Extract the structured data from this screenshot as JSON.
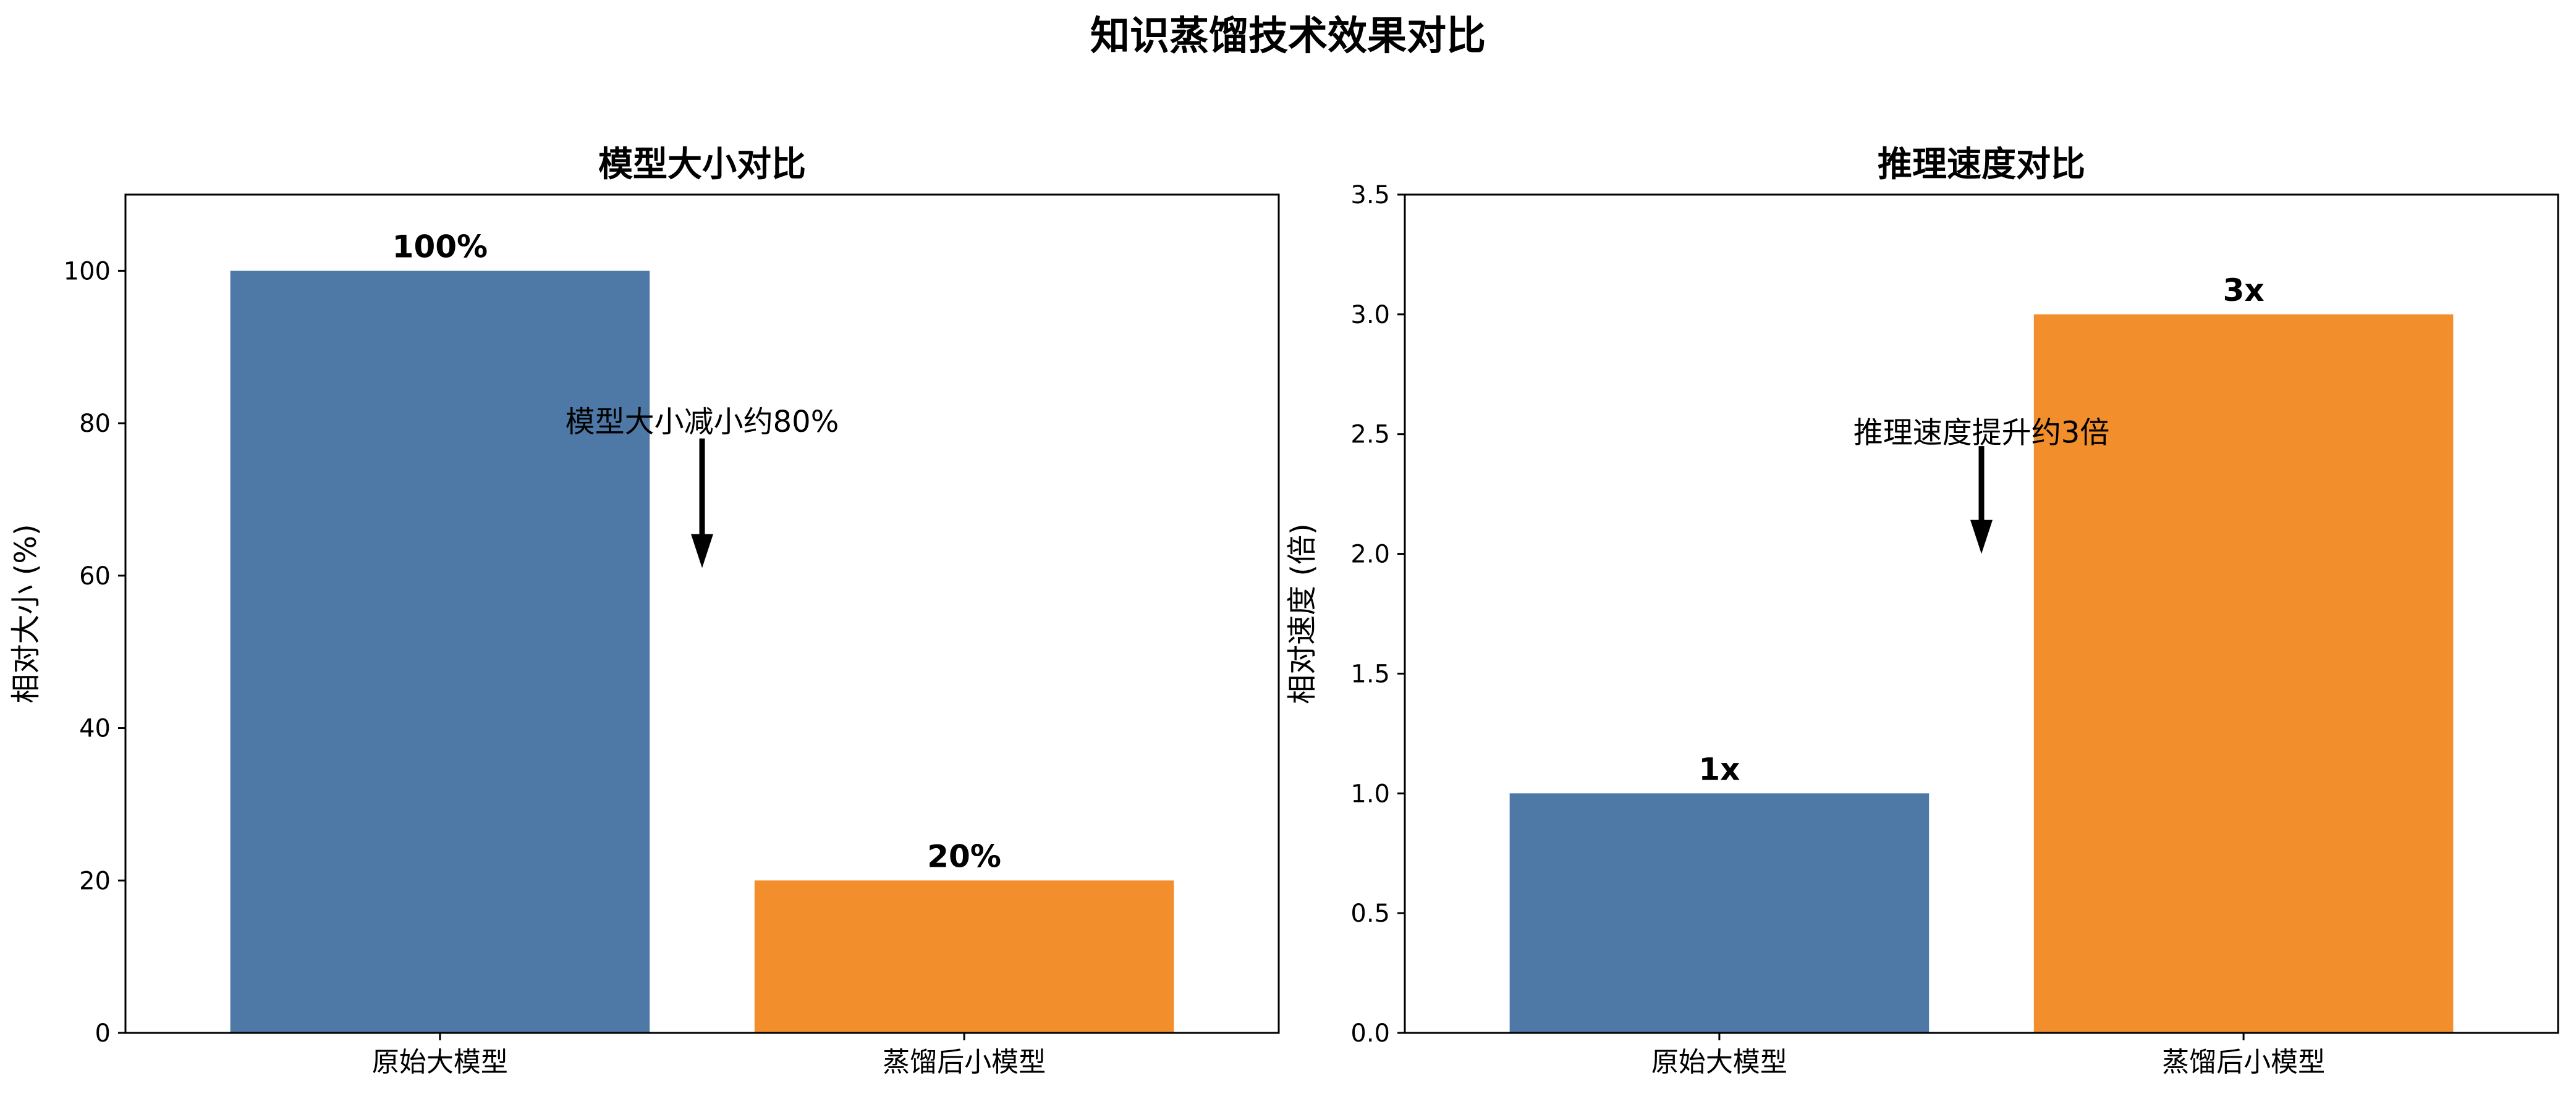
{
  "title": "知识蒸馏技术效果对比",
  "colors": {
    "original": "#4e79a7",
    "distilled": "#f28e2b",
    "axis": "#000000"
  },
  "chart_data": [
    {
      "type": "bar",
      "title": "模型大小对比",
      "categories": [
        "原始大模型",
        "蒸馏后小模型"
      ],
      "values": [
        100,
        20
      ],
      "value_labels": [
        "100%",
        "20%"
      ],
      "xlabel": "",
      "ylabel": "相对大小 (%)",
      "ylim": [
        0,
        110
      ],
      "yticks": [
        0,
        20,
        40,
        60,
        80,
        100
      ],
      "ytick_labels": [
        "0",
        "20",
        "40",
        "60",
        "80",
        "100"
      ],
      "annotation": {
        "text": "模型大小减小约80%",
        "text_x": 0.5,
        "text_y": 80,
        "arrow_from": 78,
        "arrow_to": 61
      },
      "grid": false
    },
    {
      "type": "bar",
      "title": "推理速度对比",
      "categories": [
        "原始大模型",
        "蒸馏后小模型"
      ],
      "values": [
        1,
        3
      ],
      "value_labels": [
        "1x",
        "3x"
      ],
      "xlabel": "",
      "ylabel": "相对速度 (倍)",
      "ylim": [
        0,
        3.5
      ],
      "yticks": [
        0.0,
        0.5,
        1.0,
        1.5,
        2.0,
        2.5,
        3.0,
        3.5
      ],
      "ytick_labels": [
        "0.0",
        "0.5",
        "1.0",
        "1.5",
        "2.0",
        "2.5",
        "3.0",
        "3.5"
      ],
      "annotation": {
        "text": "推理速度提升约3倍",
        "text_x": 0.5,
        "text_y": 2.5,
        "arrow_from": 2.45,
        "arrow_to": 2.0
      },
      "grid": false
    }
  ]
}
